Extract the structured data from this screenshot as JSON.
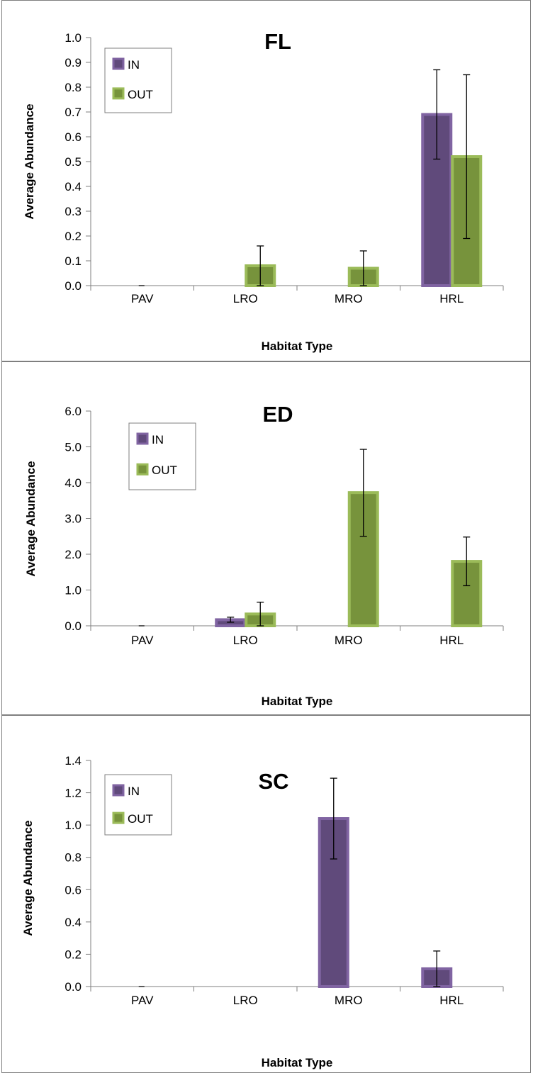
{
  "colors": {
    "in_fill": "#604a7b",
    "in_border": "#8064a2",
    "out_fill": "#77933c",
    "out_border": "#9bbb59"
  },
  "chart_data": [
    {
      "type": "bar",
      "title": "FL",
      "xlabel": "Habitat Type",
      "ylabel": "Average Abundance",
      "categories": [
        "PAV",
        "LRO",
        "MRO",
        "HRL"
      ],
      "ylim": [
        0,
        1.0
      ],
      "yticks": [
        "0.0",
        "0.1",
        "0.2",
        "0.3",
        "0.4",
        "0.5",
        "0.6",
        "0.7",
        "0.8",
        "0.9",
        "1.0"
      ],
      "ytick_values": [
        0,
        0.1,
        0.2,
        0.3,
        0.4,
        0.5,
        0.6,
        0.7,
        0.8,
        0.9,
        1.0
      ],
      "legend": "top-left",
      "series": [
        {
          "name": "IN",
          "values": [
            0,
            0,
            0,
            0.69
          ],
          "err_low": [
            0,
            0,
            0,
            0.51
          ],
          "err_high": [
            0,
            0,
            0,
            0.87
          ]
        },
        {
          "name": "OUT",
          "values": [
            0,
            0.08,
            0.07,
            0.52
          ],
          "err_low": [
            0,
            0.0,
            0.0,
            0.19
          ],
          "err_high": [
            0,
            0.16,
            0.14,
            0.85
          ]
        }
      ]
    },
    {
      "type": "bar",
      "title": "ED",
      "xlabel": "Habitat Type",
      "ylabel": "Average Abundance",
      "categories": [
        "PAV",
        "LRO",
        "MRO",
        "HRL"
      ],
      "ylim": [
        0,
        6.0
      ],
      "yticks": [
        "0.0",
        "1.0",
        "2.0",
        "3.0",
        "4.0",
        "5.0",
        "6.0"
      ],
      "ytick_values": [
        0,
        1,
        2,
        3,
        4,
        5,
        6
      ],
      "legend": "top-left",
      "series": [
        {
          "name": "IN",
          "values": [
            0,
            0.17,
            0,
            0
          ],
          "err_low": [
            0,
            0.1,
            0,
            0
          ],
          "err_high": [
            0,
            0.24,
            0,
            0
          ]
        },
        {
          "name": "OUT",
          "values": [
            0,
            0.33,
            3.72,
            1.8
          ],
          "err_low": [
            0,
            0.0,
            2.5,
            1.12
          ],
          "err_high": [
            0,
            0.66,
            4.93,
            2.48
          ]
        }
      ]
    },
    {
      "type": "bar",
      "title": "SC",
      "xlabel": "Habitat Type",
      "ylabel": "Average Abundance",
      "categories": [
        "PAV",
        "LRO",
        "MRO",
        "HRL"
      ],
      "ylim": [
        0,
        1.4
      ],
      "yticks": [
        "0.0",
        "0.2",
        "0.4",
        "0.6",
        "0.8",
        "1.0",
        "1.2",
        "1.4"
      ],
      "ytick_values": [
        0,
        0.2,
        0.4,
        0.6,
        0.8,
        1.0,
        1.2,
        1.4
      ],
      "legend": "top-left",
      "series": [
        {
          "name": "IN",
          "values": [
            0,
            0,
            1.04,
            0.11
          ],
          "err_low": [
            0,
            0,
            0.79,
            0.0
          ],
          "err_high": [
            0,
            0,
            1.29,
            0.22
          ]
        },
        {
          "name": "OUT",
          "values": [
            0,
            0,
            0,
            0
          ],
          "err_low": [
            0,
            0,
            0,
            0
          ],
          "err_high": [
            0,
            0,
            0,
            0
          ]
        }
      ]
    }
  ]
}
